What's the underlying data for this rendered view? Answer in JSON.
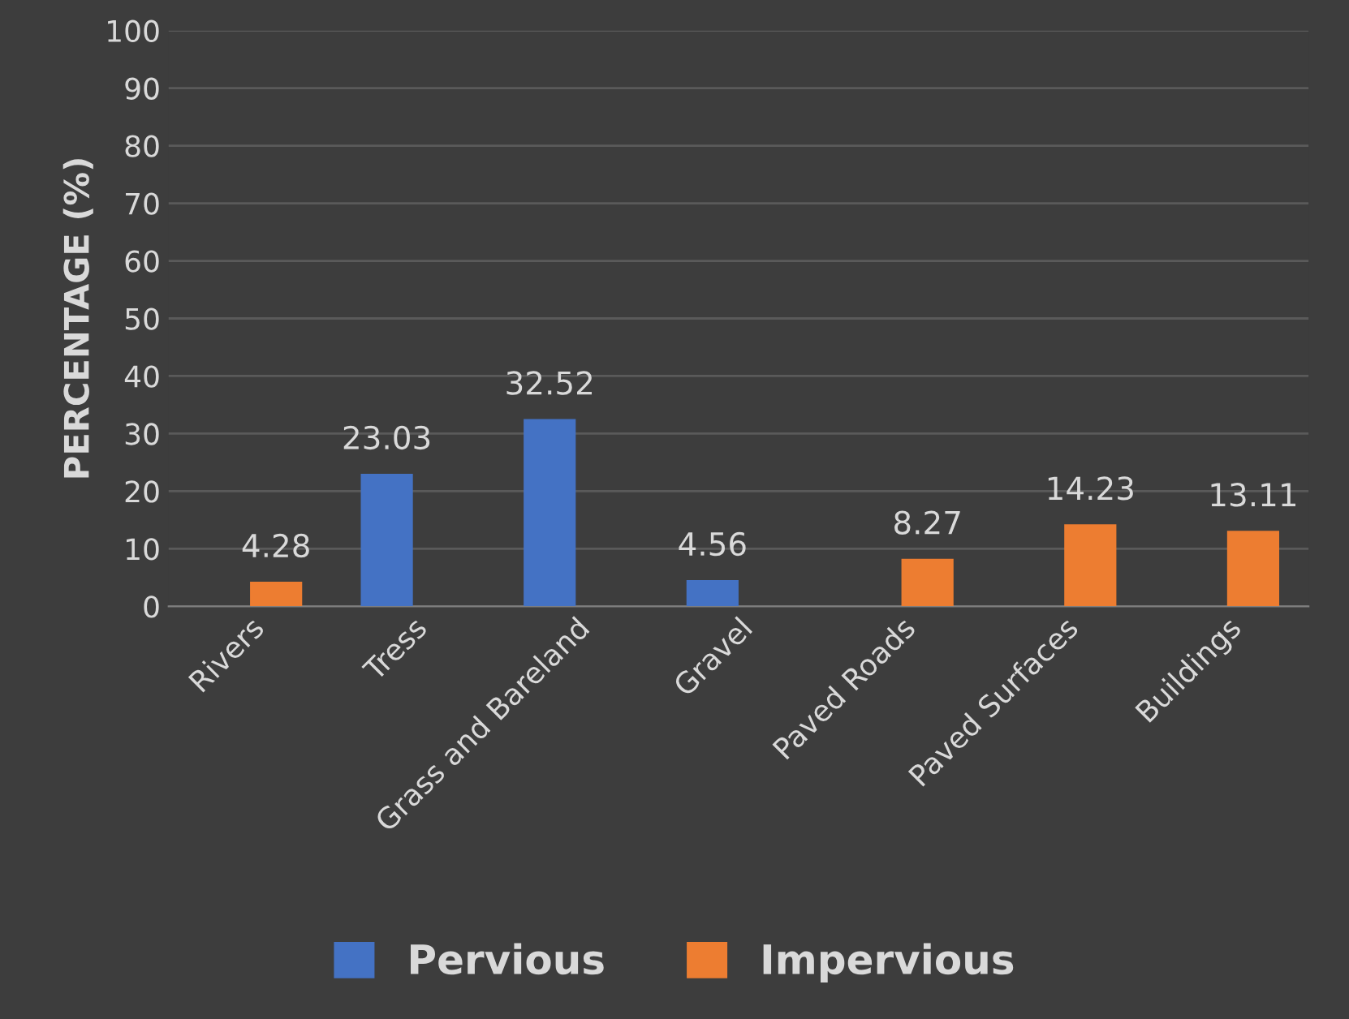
{
  "chart_data": {
    "type": "bar",
    "ylabel": "PERCENTAGE (%)",
    "categories": [
      "Rivers",
      "Tress",
      "Grass and Bareland",
      "Gravel",
      "Paved Roads",
      "Paved Surfaces",
      "Buildings"
    ],
    "series": [
      {
        "name": "Pervious",
        "color": "#4472c4",
        "values": [
          null,
          23.03,
          32.52,
          4.56,
          null,
          null,
          null
        ]
      },
      {
        "name": "Impervious",
        "color": "#ed7d31",
        "values": [
          4.28,
          null,
          null,
          null,
          8.27,
          14.23,
          13.11
        ]
      }
    ],
    "ylim": [
      0,
      100
    ],
    "yticks": [
      0,
      10,
      20,
      30,
      40,
      50,
      60,
      70,
      80,
      90,
      100
    ],
    "grid": "y",
    "legend": "bottom",
    "data_labels": true
  }
}
